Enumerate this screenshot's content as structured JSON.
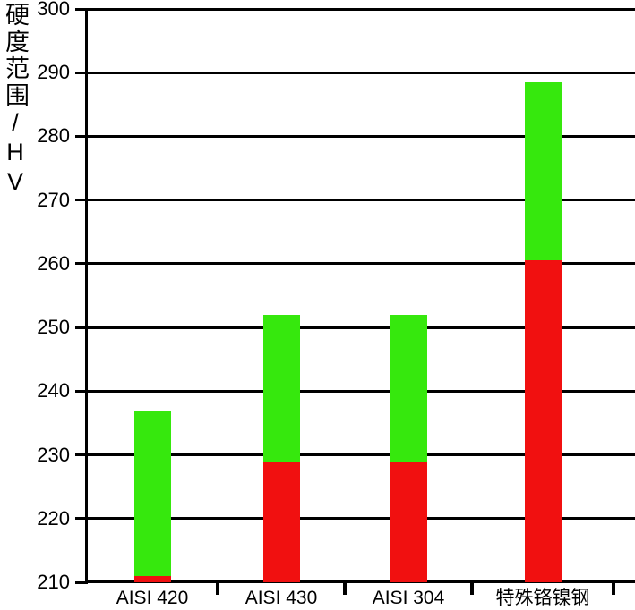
{
  "chart_data": {
    "type": "bar",
    "subtype": "stacked-range-bars",
    "title": "",
    "ylabel": "硬度范围/HV",
    "xlabel": "",
    "ylim": [
      210,
      300
    ],
    "yticks": [
      210,
      220,
      230,
      240,
      250,
      260,
      270,
      280,
      290,
      300
    ],
    "grid": true,
    "legend": "none",
    "categories": [
      "AISI 420",
      "AISI 430",
      "AISI 304",
      "特殊铬镍钢"
    ],
    "series": [
      {
        "name": "lower-range-segment",
        "color": "#F11010",
        "ranges": [
          [
            210,
            211
          ],
          [
            210,
            229
          ],
          [
            210,
            229
          ],
          [
            210,
            260.5
          ]
        ]
      },
      {
        "name": "upper-range-segment",
        "color": "#36E80D",
        "ranges": [
          [
            211,
            237
          ],
          [
            229,
            252
          ],
          [
            229,
            252
          ],
          [
            260.5,
            288.5
          ]
        ]
      }
    ],
    "colors": {
      "axis": "#000000",
      "background": "#ffffff",
      "lower_segment_red": "#F11010",
      "upper_segment_green": "#36E80D"
    }
  }
}
